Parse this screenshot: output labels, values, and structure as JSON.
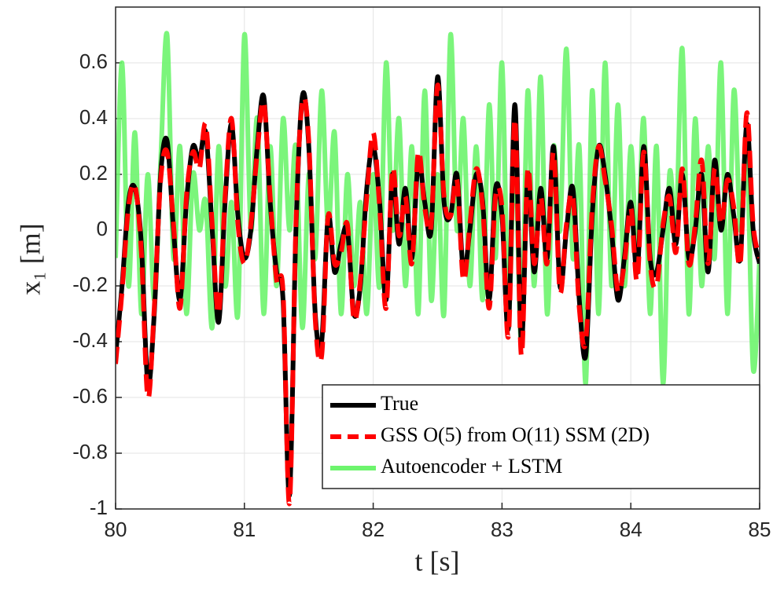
{
  "chart_data": {
    "type": "line",
    "xlabel": "t [s]",
    "ylabel": "x₁ [m]",
    "xlim": [
      80,
      85
    ],
    "ylim": [
      -1,
      0.8
    ],
    "xticks": [
      80,
      81,
      82,
      83,
      84,
      85
    ],
    "yticks": [
      -1,
      -0.8,
      -0.6,
      -0.4,
      -0.2,
      0,
      0.2,
      0.4,
      0.6
    ],
    "grid": true,
    "legend": "lower right",
    "x": [
      80,
      80.05,
      80.1,
      80.15,
      80.2,
      80.25,
      80.3,
      80.35,
      80.4,
      80.45,
      80.5,
      80.55,
      80.6,
      80.65,
      80.7,
      80.75,
      80.8,
      80.85,
      80.9,
      80.95,
      81,
      81.05,
      81.1,
      81.15,
      81.2,
      81.25,
      81.3,
      81.35,
      81.4,
      81.45,
      81.5,
      81.55,
      81.6,
      81.65,
      81.7,
      81.75,
      81.8,
      81.85,
      81.9,
      81.95,
      82,
      82.05,
      82.1,
      82.15,
      82.2,
      82.25,
      82.3,
      82.35,
      82.4,
      82.45,
      82.5,
      82.55,
      82.6,
      82.65,
      82.7,
      82.75,
      82.8,
      82.85,
      82.9,
      82.95,
      83,
      83.05,
      83.1,
      83.15,
      83.2,
      83.25,
      83.3,
      83.35,
      83.4,
      83.45,
      83.5,
      83.55,
      83.6,
      83.65,
      83.7,
      83.75,
      83.8,
      83.85,
      83.9,
      83.95,
      84,
      84.05,
      84.1,
      84.15,
      84.2,
      84.25,
      84.3,
      84.35,
      84.4,
      84.45,
      84.5,
      84.55,
      84.6,
      84.65,
      84.7,
      84.75,
      84.8,
      84.85,
      84.9,
      84.95,
      85
    ],
    "series": [
      {
        "name": "Autoencoder + LSTM",
        "color": "#6df46d",
        "width": 6,
        "dash": "none",
        "values": [
          -0.1,
          0.6,
          -0.2,
          0.35,
          -0.3,
          0.2,
          -0.25,
          0.25,
          0.7,
          -0.1,
          0.3,
          -0.3,
          0.2,
          0.0,
          0.1,
          -0.35,
          0.3,
          -0.2,
          0.1,
          -0.3,
          0.7,
          0.0,
          0.4,
          -0.3,
          0.3,
          -0.2,
          0.4,
          0.0,
          0.3,
          -0.35,
          0.2,
          -0.1,
          0.5,
          0.0,
          0.35,
          -0.3,
          0.2,
          -0.2,
          0.1,
          -0.3,
          0.2,
          -0.2,
          0.6,
          0.0,
          0.4,
          -0.2,
          0.3,
          -0.3,
          0.5,
          -0.25,
          0.2,
          -0.3,
          0.7,
          0.0,
          0.4,
          -0.2,
          0.3,
          -0.25,
          0.45,
          -0.1,
          0.6,
          -0.3,
          0.3,
          -0.4,
          0.5,
          -0.2,
          0.55,
          -0.3,
          0.3,
          0.0,
          0.65,
          -0.1,
          0.3,
          -0.55,
          0.5,
          -0.3,
          0.6,
          -0.2,
          0.45,
          -0.2,
          0.3,
          -0.1,
          0.4,
          -0.3,
          0.3,
          -0.55,
          0.2,
          0.0,
          0.65,
          -0.3,
          0.4,
          -0.2,
          0.3,
          -0.1,
          0.6,
          -0.3,
          0.5,
          0.0,
          0.3,
          -0.5,
          -0.1
        ]
      },
      {
        "name": "True",
        "color": "#000000",
        "width": 6,
        "dash": "none",
        "values": [
          -0.45,
          -0.2,
          0.1,
          0.15,
          -0.05,
          -0.55,
          -0.3,
          0.2,
          0.32,
          0.0,
          -0.25,
          0.1,
          0.3,
          0.25,
          0.35,
          0.0,
          -0.33,
          0.1,
          0.38,
          0.05,
          -0.1,
          0.0,
          0.3,
          0.48,
          0.1,
          -0.15,
          -0.25,
          -0.95,
          0.0,
          0.48,
          0.3,
          -0.3,
          -0.4,
          0.05,
          -0.15,
          -0.05,
          0.0,
          -0.3,
          -0.2,
          0.15,
          0.3,
          0.1,
          -0.25,
          0.2,
          -0.05,
          0.15,
          -0.1,
          0.25,
          0.1,
          0.0,
          0.55,
          0.1,
          0.05,
          0.2,
          -0.15,
          0.0,
          0.2,
          0.1,
          -0.25,
          0.15,
          0.05,
          -0.35,
          0.45,
          -0.4,
          0.2,
          -0.15,
          0.15,
          -0.1,
          0.3,
          -0.2,
          0.0,
          0.15,
          -0.25,
          -0.45,
          0.05,
          0.3,
          0.2,
          0.0,
          -0.25,
          -0.1,
          0.1,
          -0.15,
          0.3,
          -0.1,
          -0.15,
          0.0,
          0.15,
          -0.05,
          0.2,
          -0.1,
          0.0,
          0.2,
          -0.15,
          0.25,
          0.0,
          0.2,
          0.05,
          -0.1,
          0.38,
          0.0,
          -0.12
        ]
      },
      {
        "name": "GSS O(5) from O(11) SSM (2D)",
        "color": "#ff0000",
        "width": 6,
        "dash": "22 12",
        "values": [
          -0.48,
          -0.22,
          0.08,
          0.16,
          -0.08,
          -0.6,
          -0.28,
          0.18,
          0.28,
          0.02,
          -0.28,
          0.12,
          0.28,
          0.22,
          0.38,
          0.02,
          -0.3,
          0.12,
          0.4,
          0.02,
          -0.12,
          0.02,
          0.28,
          0.46,
          0.12,
          -0.18,
          -0.22,
          -0.98,
          0.02,
          0.46,
          0.32,
          -0.32,
          -0.45,
          0.05,
          -0.12,
          -0.08,
          0.02,
          -0.32,
          -0.18,
          0.12,
          0.35,
          0.08,
          -0.28,
          0.22,
          -0.02,
          0.12,
          -0.12,
          0.28,
          0.08,
          0.02,
          0.52,
          0.12,
          0.05,
          0.18,
          -0.18,
          0.02,
          0.22,
          0.08,
          -0.28,
          0.12,
          0.08,
          -0.38,
          0.4,
          -0.45,
          0.22,
          -0.12,
          0.12,
          -0.12,
          0.28,
          -0.22,
          0.02,
          0.12,
          -0.28,
          -0.4,
          0.08,
          0.3,
          0.18,
          0.02,
          -0.22,
          -0.12,
          0.08,
          -0.18,
          0.28,
          -0.12,
          -0.2,
          0.02,
          0.12,
          -0.08,
          0.22,
          -0.12,
          0.02,
          0.25,
          -0.12,
          0.22,
          0.02,
          0.18,
          0.08,
          -0.12,
          0.42,
          0.02,
          -0.1
        ]
      }
    ]
  }
}
